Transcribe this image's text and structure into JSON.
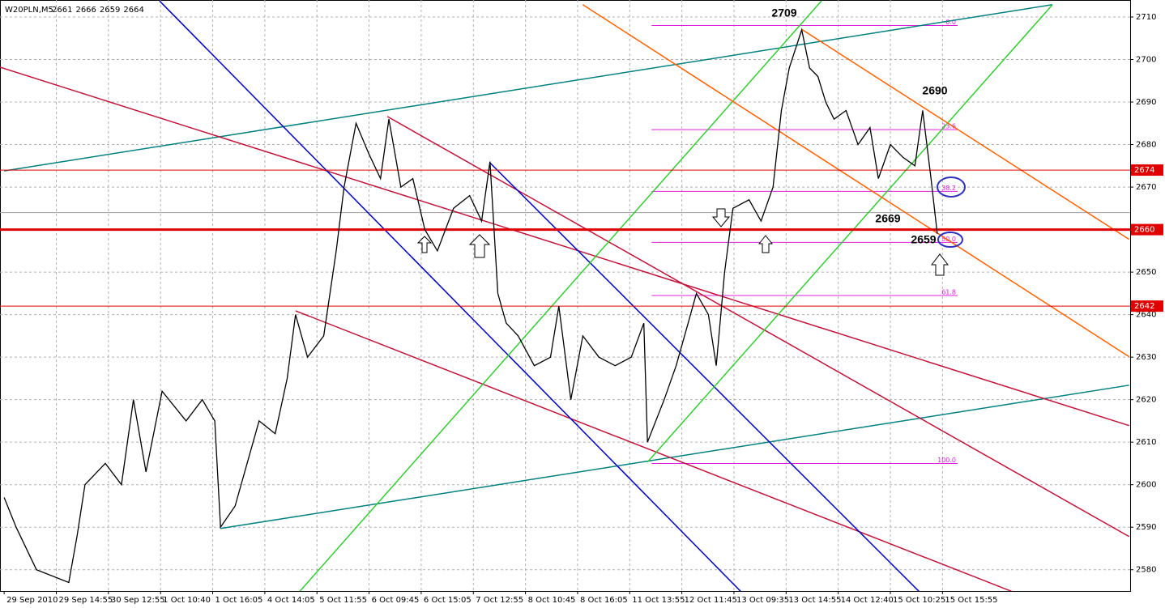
{
  "chart_data": {
    "type": "line",
    "symbol": "W20PLN,M5",
    "ohlc": [
      2661,
      2666,
      2659,
      2664
    ],
    "color": "#000000",
    "xlim": [
      -0.08,
      21.6
    ],
    "ylim": [
      2575,
      2714
    ],
    "xticks": [
      {
        "value": 0,
        "label": "29 Sep 2010"
      },
      {
        "value": 1,
        "label": "29 Sep 14:55"
      },
      {
        "value": 2,
        "label": "30 Sep 12:55"
      },
      {
        "value": 3,
        "label": "1 Oct 10:40"
      },
      {
        "value": 4,
        "label": "1 Oct 16:05"
      },
      {
        "value": 5,
        "label": "4 Oct 14:05"
      },
      {
        "value": 6,
        "label": "5 Oct 11:55"
      },
      {
        "value": 7,
        "label": "6 Oct 09:45"
      },
      {
        "value": 8,
        "label": "6 Oct 15:05"
      },
      {
        "value": 9,
        "label": "7 Oct 12:55"
      },
      {
        "value": 10,
        "label": "8 Oct 10:45"
      },
      {
        "value": 11,
        "label": "8 Oct 16:05"
      },
      {
        "value": 12,
        "label": "11 Oct 13:55"
      },
      {
        "value": 13,
        "label": "12 Oct 11:45"
      },
      {
        "value": 14,
        "label": "13 Oct 09:35"
      },
      {
        "value": 15,
        "label": "13 Oct 14:55"
      },
      {
        "value": 16,
        "label": "14 Oct 12:40"
      },
      {
        "value": 17,
        "label": "15 Oct 10:25"
      },
      {
        "value": 18,
        "label": "15 Oct 15:55"
      }
    ],
    "yticks": [
      2580,
      2590,
      2600,
      2610,
      2620,
      2630,
      2640,
      2650,
      2660,
      2670,
      2680,
      2690,
      2700,
      2710
    ],
    "grid": true,
    "x": [
      0,
      0.23,
      0.62,
      1.24,
      1.4,
      1.55,
      1.94,
      2.25,
      2.48,
      2.72,
      3.03,
      3.49,
      3.8,
      4.04,
      4.15,
      4.43,
      4.66,
      4.89,
      5.2,
      5.43,
      5.59,
      5.82,
      6.13,
      6.37,
      6.52,
      6.75,
      6.99,
      7.22,
      7.38,
      7.61,
      7.84,
      8.07,
      8.31,
      8.62,
      8.93,
      9.16,
      9.32,
      9.47,
      9.63,
      9.86,
      10.17,
      10.48,
      10.64,
      10.87,
      11.1,
      11.41,
      11.72,
      12.03,
      12.27,
      12.34,
      12.5,
      12.66,
      12.89,
      13.12,
      13.28,
      13.51,
      13.66,
      13.82,
      13.98,
      14.29,
      14.52,
      14.75,
      14.91,
      15.06,
      15.3,
      15.45,
      15.61,
      15.76,
      15.92,
      16.15,
      16.38,
      16.61,
      16.77,
      17.0,
      17.24,
      17.47,
      17.62,
      17.78,
      17.9
    ],
    "values": [
      2597,
      2590,
      2580,
      2577,
      2588,
      2600,
      2605,
      2600,
      2620,
      2603,
      2622,
      2615,
      2620,
      2615,
      2590,
      2595,
      2605,
      2615,
      2612,
      2625,
      2640,
      2630,
      2635,
      2655,
      2670,
      2685,
      2678,
      2672,
      2686,
      2670,
      2672,
      2660,
      2655,
      2665,
      2668,
      2662,
      2676,
      2645,
      2638,
      2635,
      2628,
      2630,
      2642,
      2620,
      2635,
      2630,
      2628,
      2630,
      2638,
      2610,
      2615,
      2620,
      2628,
      2638,
      2645,
      2640,
      2628,
      2650,
      2665,
      2667,
      2662,
      2670,
      2688,
      2698,
      2707,
      2698,
      2696,
      2690,
      2686,
      2688,
      2680,
      2684,
      2672,
      2680,
      2677,
      2675,
      2688,
      2672,
      2659
    ],
    "lines": [
      {
        "color": "#00807f",
        "x1": 0,
        "y1": 2673.8,
        "x2": 20.11,
        "y2": 2712.9
      },
      {
        "color": "#00807f",
        "x1": 4.15,
        "y1": 2589.7,
        "x2": 21.58,
        "y2": 2623.4
      },
      {
        "color": "#c0143c",
        "x1": -0.08,
        "y1": 2698.2,
        "x2": 21.58,
        "y2": 2613.9
      },
      {
        "color": "#c0143c",
        "x1": 7.35,
        "y1": 2686.6,
        "x2": 21.58,
        "y2": 2587.8
      },
      {
        "color": "#c0143c",
        "x1": 5.59,
        "y1": 2640.9,
        "x2": 19.33,
        "y2": 2574.9
      },
      {
        "color": "#0000c8",
        "x1": 2.98,
        "y1": 2713.8,
        "x2": 14.13,
        "y2": 2574.9
      },
      {
        "color": "#0000c8",
        "x1": 9.32,
        "y1": 2675.7,
        "x2": 17.55,
        "y2": 2574.9
      },
      {
        "color": "#32cd32",
        "x1": 5.67,
        "y1": 2574.9,
        "x2": 15.68,
        "y2": 2713.8
      },
      {
        "color": "#32cd32",
        "x1": 12.34,
        "y1": 2605.3,
        "x2": 20.11,
        "y2": 2712.9
      },
      {
        "color": "#ff6000",
        "x1": 11.1,
        "y1": 2712.9,
        "x2": 21.58,
        "y2": 2630.1
      },
      {
        "color": "#ff6000",
        "x1": 15.3,
        "y1": 2707.1,
        "x2": 21.58,
        "y2": 2657.7
      }
    ],
    "hlines": [
      {
        "value": 2674,
        "color": "#e00000",
        "width": 1
      },
      {
        "value": 2660,
        "color": "#e00000",
        "width": 3
      },
      {
        "value": 2642,
        "color": "#e00000",
        "width": 1
      }
    ],
    "price_line": 2664,
    "fibo": {
      "color": "#e020e0",
      "x": [
        12.42,
        18.29
      ],
      "levels": [
        {
          "value": 2708,
          "label": "0.0"
        },
        {
          "value": 2683.5,
          "label": "23.6"
        },
        {
          "value": 2669,
          "label": "38.2"
        },
        {
          "value": 2657,
          "label": "50.0"
        },
        {
          "value": 2644.5,
          "label": "61.8"
        },
        {
          "value": 2605,
          "label": "100.0"
        }
      ]
    },
    "annotations": [
      "2709",
      "2690",
      "2669",
      "2659"
    ]
  }
}
